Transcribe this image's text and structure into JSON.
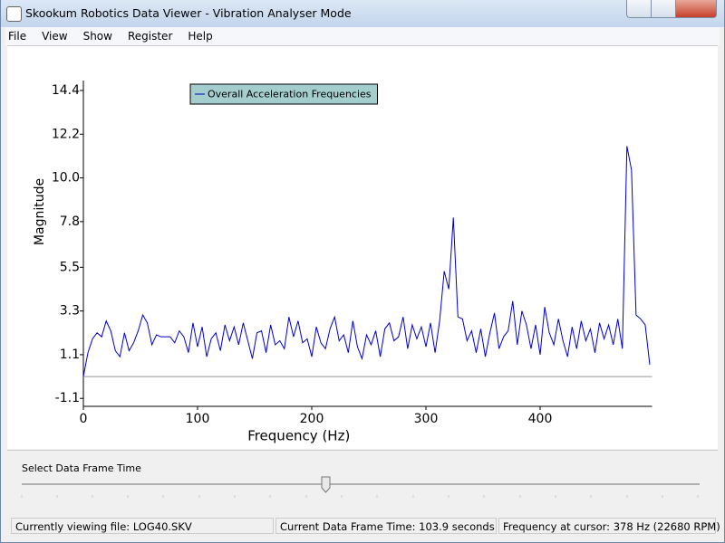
{
  "window": {
    "title": "Skookum Robotics Data Viewer - Vibration Analyser Mode"
  },
  "menu": [
    "File",
    "View",
    "Show",
    "Register",
    "Help"
  ],
  "chart_data": {
    "type": "line",
    "xlabel": "Frequency (Hz)",
    "ylabel": "Magnitude",
    "x": [
      0,
      4,
      8,
      12,
      16,
      20,
      24,
      28,
      32,
      36,
      40,
      44,
      48,
      52,
      56,
      60,
      64,
      68,
      72,
      76,
      80,
      84,
      88,
      92,
      96,
      100,
      104,
      108,
      112,
      116,
      120,
      124,
      128,
      132,
      136,
      140,
      144,
      148,
      152,
      156,
      160,
      164,
      168,
      172,
      176,
      180,
      184,
      188,
      192,
      196,
      200,
      204,
      208,
      212,
      216,
      220,
      224,
      228,
      232,
      236,
      240,
      244,
      248,
      252,
      256,
      260,
      264,
      268,
      272,
      276,
      280,
      284,
      288,
      292,
      296,
      300,
      304,
      308,
      312,
      316,
      320,
      324,
      328,
      332,
      336,
      340,
      344,
      348,
      352,
      356,
      360,
      364,
      368,
      372,
      376,
      380,
      384,
      388,
      392,
      396,
      400,
      404,
      408,
      412,
      416,
      420,
      424,
      428,
      432,
      436,
      440,
      444,
      448,
      452,
      456,
      460,
      464,
      468,
      472,
      476,
      480,
      484,
      488,
      492,
      496
    ],
    "series": [
      {
        "name": "Overall Acceleration Frequencies",
        "color": "#0000c8",
        "values": [
          0.0,
          1.2,
          1.9,
          2.2,
          2.0,
          2.8,
          2.3,
          1.3,
          1.0,
          2.2,
          1.3,
          1.7,
          2.3,
          3.1,
          2.7,
          1.6,
          2.1,
          2.0,
          2.0,
          2.0,
          1.7,
          2.3,
          2.0,
          1.2,
          2.7,
          1.5,
          2.5,
          1.0,
          1.9,
          2.2,
          1.3,
          2.6,
          1.8,
          2.5,
          1.6,
          2.7,
          1.8,
          0.9,
          2.2,
          2.3,
          1.2,
          2.6,
          1.6,
          1.8,
          1.4,
          3.0,
          2.0,
          2.8,
          1.7,
          1.9,
          1.0,
          2.5,
          1.7,
          1.4,
          2.4,
          3.0,
          1.8,
          2.1,
          1.2,
          2.8,
          1.5,
          0.9,
          2.1,
          1.6,
          2.3,
          1.0,
          2.4,
          2.7,
          1.8,
          2.0,
          3.0,
          1.4,
          2.6,
          1.9,
          2.5,
          1.5,
          2.7,
          1.2,
          2.8,
          5.3,
          4.4,
          8.0,
          3.0,
          2.9,
          1.8,
          2.3,
          1.2,
          2.4,
          1.0,
          2.2,
          3.2,
          1.4,
          2.0,
          2.3,
          3.8,
          1.6,
          3.3,
          2.6,
          1.4,
          2.6,
          1.1,
          3.5,
          2.2,
          1.6,
          2.9,
          1.8,
          1.0,
          2.5,
          1.4,
          2.8,
          1.8,
          2.4,
          1.2,
          2.7,
          1.9,
          2.6,
          1.6,
          2.9,
          1.4,
          11.6,
          10.4,
          3.1,
          2.9,
          2.6,
          0.6
        ]
      }
    ],
    "xlim": [
      0,
      498
    ],
    "xticks": [
      0,
      100,
      200,
      300,
      400
    ],
    "ylim": [
      -1.5,
      14.9
    ],
    "yticks": [
      -1.1,
      1.1,
      3.3,
      5.5,
      7.8,
      {
        "value": 10,
        "label": "10.0"
      },
      12.2,
      14.4
    ],
    "legend": "upper left"
  },
  "slider": {
    "label": "Select Data Frame Time"
  },
  "status": [
    "Currently viewing file: LOG40.SKV",
    "Current Data Frame Time: 103.9 seconds",
    "Frequency at cursor: 378 Hz (22680 RPM)"
  ]
}
